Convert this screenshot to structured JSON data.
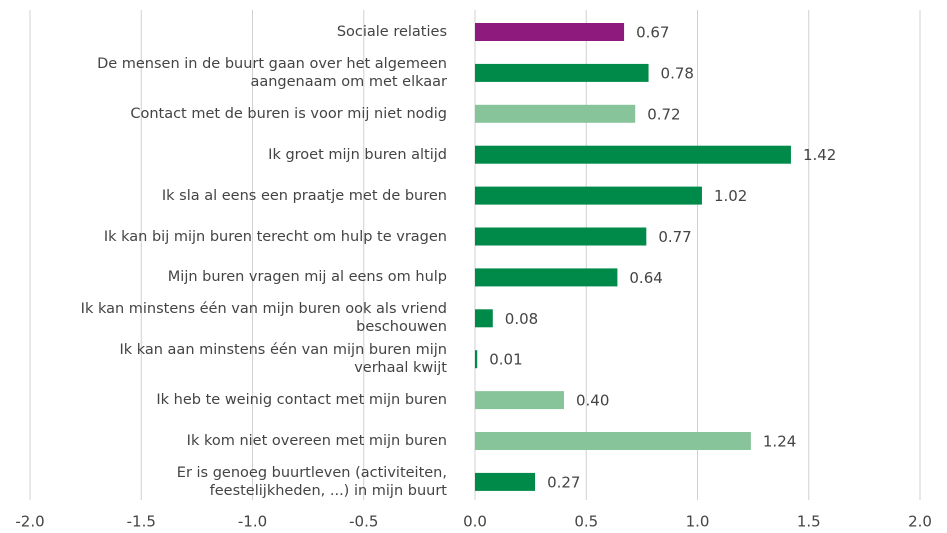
{
  "chart_data": {
    "type": "bar",
    "orientation": "horizontal",
    "categories": [
      "Sociale relaties",
      "De mensen in de buurt gaan over het algemeen\naangenaam om met elkaar",
      "Contact met de buren is voor mij niet nodig",
      "Ik groet mijn buren altijd",
      "Ik sla al eens een praatje met de buren",
      "Ik kan bij mijn buren terecht om hulp te vragen",
      "Mijn buren vragen mij al eens om hulp",
      "Ik kan minstens één van mijn buren ook als vriend\nbeschouwen",
      "Ik kan aan minstens één van mijn buren mijn\nverhaal kwijt",
      "Ik heb te weinig contact met mijn buren",
      "Ik kom niet overeen met mijn buren",
      "Er is genoeg buurtleven (activiteiten,\nfeestelijkheden, ...) in mijn buurt"
    ],
    "values": [
      0.67,
      0.78,
      0.72,
      1.42,
      1.02,
      0.77,
      0.64,
      0.08,
      0.01,
      0.4,
      1.24,
      0.27
    ],
    "value_labels": [
      "0.67",
      "0.78",
      "0.72",
      "1.42",
      "1.02",
      "0.77",
      "0.64",
      "0.08",
      "0.01",
      "0.40",
      "1.24",
      "0.27"
    ],
    "colors": [
      "#8e1a7e",
      "#008a4a",
      "#88c49a",
      "#008a4a",
      "#008a4a",
      "#008a4a",
      "#008a4a",
      "#008a4a",
      "#008a4a",
      "#88c49a",
      "#88c49a",
      "#008a4a"
    ],
    "xlim": [
      -2,
      2
    ],
    "xticks": [
      {
        "value": -2,
        "label": "-2.0"
      },
      -1.5,
      {
        "value": -1,
        "label": "-1.0"
      },
      -0.5,
      {
        "value": 0,
        "label": "0.0"
      },
      0.5,
      {
        "value": 1,
        "label": "1.0"
      },
      1.5,
      {
        "value": 2,
        "label": "2.0"
      }
    ],
    "grid": true
  }
}
